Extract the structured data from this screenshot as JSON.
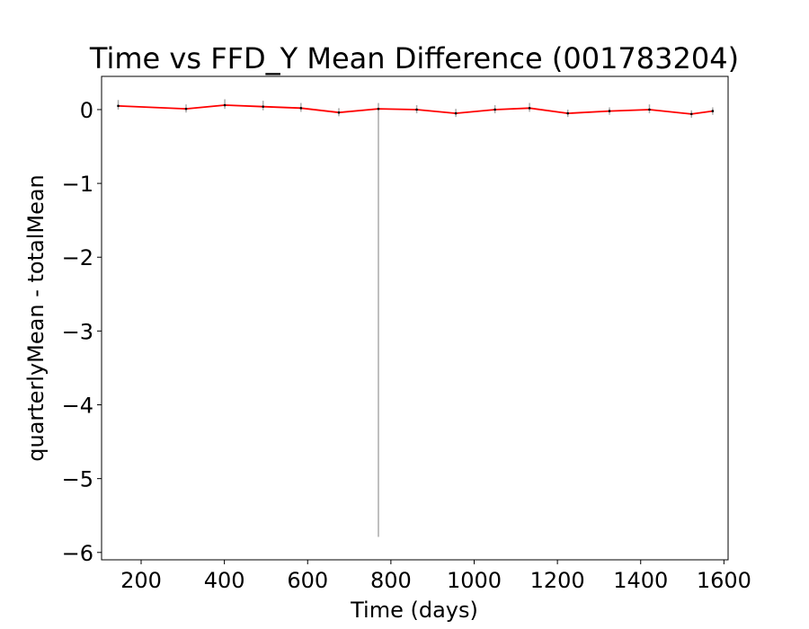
{
  "chart_data": {
    "type": "line",
    "title": "Time vs FFD_Y Mean Difference (001783204)",
    "xlabel": "Time (days)",
    "ylabel": "quarterlyMean - totalMean",
    "xlim": [
      105,
      1610
    ],
    "ylim": [
      -6.1,
      0.45
    ],
    "xticks": [
      200,
      400,
      600,
      800,
      1000,
      1200,
      1400,
      1600
    ],
    "yticks": [
      0,
      -1,
      -2,
      -3,
      -4,
      -5,
      -6
    ],
    "xtick_labels": [
      "200",
      "400",
      "600",
      "800",
      "1000",
      "1200",
      "1400",
      "1600"
    ],
    "ytick_labels": [
      "0",
      "−1",
      "−2",
      "−3",
      "−4",
      "−5",
      "−6"
    ],
    "grid": false,
    "series": [
      {
        "color": "#ff0000",
        "errorbar_color": "#aaaaaa",
        "x": [
          145,
          308,
          401,
          493,
          584,
          675,
          770,
          862,
          956,
          1050,
          1133,
          1225,
          1325,
          1421,
          1522,
          1573
        ],
        "y": [
          0.05,
          0.01,
          0.06,
          0.04,
          0.02,
          -0.04,
          0.01,
          0.0,
          -0.05,
          0.0,
          0.02,
          -0.05,
          -0.02,
          0.0,
          -0.06,
          -0.02
        ],
        "yerr_low": [
          0.05,
          0.05,
          0.05,
          0.05,
          0.05,
          0.05,
          5.8,
          0.05,
          0.05,
          0.05,
          0.05,
          0.05,
          0.05,
          0.05,
          0.05,
          0.05
        ],
        "yerr_high": [
          0.08,
          0.06,
          0.08,
          0.08,
          0.07,
          0.06,
          0.08,
          0.06,
          0.06,
          0.06,
          0.07,
          0.05,
          0.05,
          0.07,
          0.05,
          0.05
        ]
      }
    ]
  }
}
